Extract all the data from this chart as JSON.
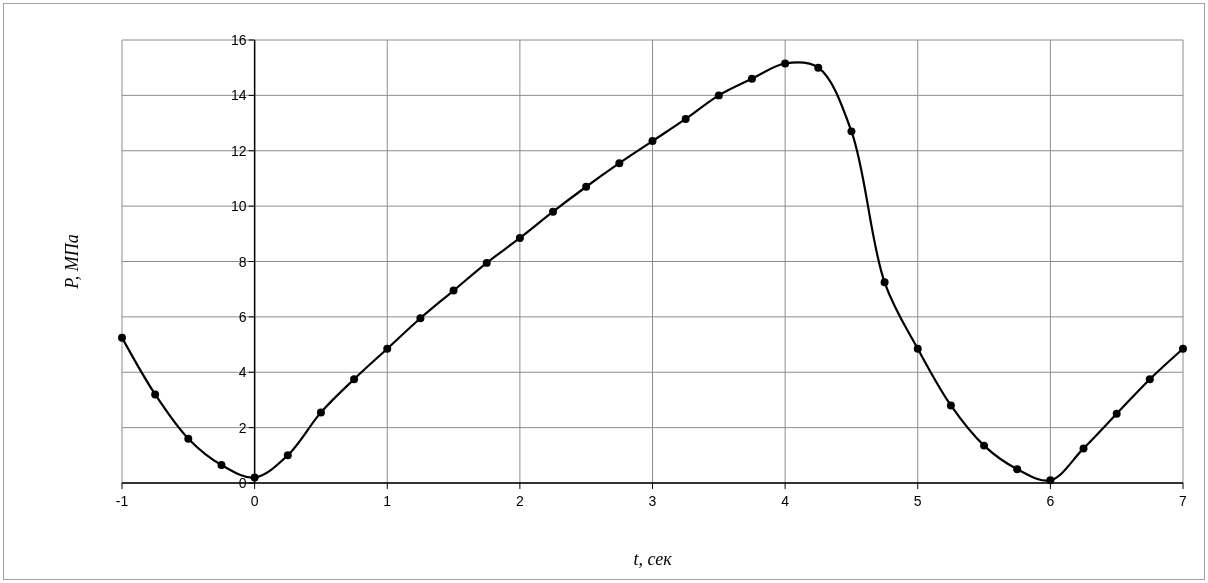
{
  "chart_data": {
    "type": "line",
    "xlabel": "t, сек",
    "ylabel": "P, МПа",
    "x": [
      -1,
      -0.75,
      -0.5,
      -0.25,
      0,
      0.25,
      0.5,
      0.75,
      1,
      1.25,
      1.5,
      1.75,
      2,
      2.25,
      2.5,
      2.75,
      3,
      3.25,
      3.5,
      3.75,
      4,
      4.25,
      4.5,
      4.75,
      5,
      5.25,
      5.5,
      5.75,
      6,
      6.25,
      6.5,
      6.75,
      7
    ],
    "series": [
      {
        "color": "#000000",
        "values": [
          5.25,
          3.2,
          1.6,
          0.65,
          0.2,
          1.0,
          2.55,
          3.75,
          4.85,
          5.95,
          6.95,
          7.95,
          8.85,
          9.8,
          10.7,
          11.55,
          12.35,
          13.15,
          14.0,
          14.6,
          15.15,
          15.0,
          12.7,
          7.25,
          4.85,
          2.8,
          1.35,
          0.5,
          0.1,
          1.25,
          2.5,
          3.75,
          4.85
        ]
      }
    ],
    "xlim": [
      -1,
      7
    ],
    "xticks": [
      -1,
      0,
      1,
      2,
      3,
      4,
      5,
      6,
      7
    ],
    "ylim": [
      0,
      16
    ],
    "yticks": [
      0,
      2,
      4,
      6,
      8,
      10,
      12,
      14,
      16
    ],
    "grid": true,
    "marker": "circle",
    "line_style": "solid"
  }
}
